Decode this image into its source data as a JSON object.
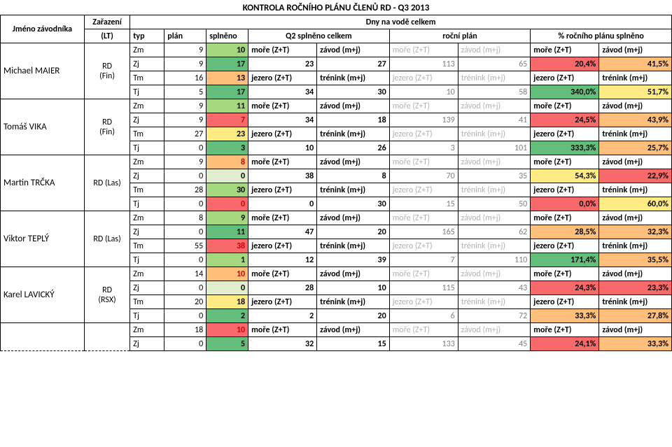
{
  "title": "KONTROLA ROČNÍHO PLÁNU ČLENŮ RD - Q3 2013",
  "headers": {
    "name": "Jméno závodníka",
    "zar_top": "Zařazení",
    "zar_bot": "(LT)",
    "dny": "Dny na vodě celkem",
    "typ": "typ",
    "plan": "plán",
    "spln": "splněno",
    "q2": "Q2 splněno celkem",
    "rocni": "roční plán",
    "pct": "% ročního plánu splněno"
  },
  "labels": {
    "more": "moře (Z+T)",
    "zavod": "závod (m+j)",
    "jezero": "jezero (Z+T)",
    "trenink": "trénink (m+j)",
    "Zm": "Zm",
    "Zj": "Zj",
    "Tm": "Tm",
    "Tj": "Tj"
  },
  "colors": {
    "green_dark": "#63be7b",
    "green_light": "#b7e1a1",
    "yellow": "#ffeb84",
    "orange": "#fdbf7a",
    "red": "#f8696b",
    "red_num": "#cc0000",
    "green_mid": "#a5d77f",
    "green_pale": "#e0eecf"
  },
  "athletes": [
    {
      "name": "Michael MAIER",
      "zar1": "RD",
      "zar2": "(Fin)",
      "rows": [
        {
          "typ": "Zm",
          "plan": "9",
          "spln": "10",
          "spln_col": "green_mid",
          "q2a": "moře (Z+T)",
          "q2b": "závod (m+j)",
          "ra": "moře (Z+T)",
          "rb": "závod (m+j)",
          "pa": "moře (Z+T)",
          "pb": "závod (m+j)",
          "faded": true
        },
        {
          "typ": "Zj",
          "plan": "9",
          "spln": "17",
          "spln_col": "green_dark",
          "q2a": "23",
          "q2b": "27",
          "ra": "113",
          "rb": "65",
          "pa": "20,4%",
          "pa_bg": "red",
          "pb": "41,5%",
          "pb_bg": "orange"
        },
        {
          "typ": "Tm",
          "plan": "16",
          "spln": "13",
          "spln_col": "orange",
          "q2a": "jezero (Z+T)",
          "q2b": "trénink (m+j)",
          "ra": "jezero (Z+T)",
          "rb": "trénink (m+j)",
          "pa": "jezero (Z+T)",
          "pb": "trénink (m+j)",
          "faded_ra": true
        },
        {
          "typ": "Tj",
          "plan": "5",
          "spln": "17",
          "spln_col": "green_dark",
          "q2a": "34",
          "q2b": "30",
          "ra": "10",
          "rb": "58",
          "pa": "340,0%",
          "pa_bg": "green_dark",
          "pb": "51,7%",
          "pb_bg": "yellow"
        }
      ]
    },
    {
      "name": "Tomáš VIKA",
      "zar1": "RD",
      "zar2": "(Fin)",
      "rows": [
        {
          "typ": "Zm",
          "plan": "9",
          "spln": "11",
          "spln_col": "green_mid",
          "q2a": "moře (Z+T)",
          "q2b": "závod (m+j)",
          "ra": "moře (Z+T)",
          "rb": "závod (m+j)",
          "pa": "moře (Z+T)",
          "pb": "závod (m+j)",
          "faded": true
        },
        {
          "typ": "Zj",
          "plan": "9",
          "spln": "7",
          "spln_col": "red",
          "spln_red": true,
          "q2a": "34",
          "q2b": "18",
          "ra": "139",
          "rb": "41",
          "pa": "24,5%",
          "pa_bg": "red",
          "pb": "43,9%",
          "pb_bg": "orange"
        },
        {
          "typ": "Tm",
          "plan": "27",
          "spln": "23",
          "spln_col": "yellow",
          "q2a": "jezero (Z+T)",
          "q2b": "trénink (m+j)",
          "ra": "jezero (Z+T)",
          "rb": "trénink (m+j)",
          "pa": "jezero (Z+T)",
          "pb": "trénink (m+j)",
          "faded_ra": true
        },
        {
          "typ": "Tj",
          "plan": "0",
          "spln": "3",
          "spln_col": "green_dark",
          "q2a": "10",
          "q2b": "26",
          "ra": "3",
          "rb": "101",
          "pa": "333,3%",
          "pa_bg": "green_dark",
          "pb": "25,7%",
          "pb_bg": "orange"
        }
      ]
    },
    {
      "name": "Martin TRČKA",
      "zar1": "RD",
      "zar2": "(Las)",
      "zar_single": true,
      "rows": [
        {
          "typ": "Zm",
          "plan": "9",
          "spln": "8",
          "spln_col": "orange",
          "spln_red": true,
          "q2a": "moře (Z+T)",
          "q2b": "závod (m+j)",
          "ra": "moře (Z+T)",
          "rb": "závod (m+j)",
          "pa": "moře (Z+T)",
          "pb": "závod (m+j)",
          "faded": true
        },
        {
          "typ": "Zj",
          "plan": "0",
          "spln": "0",
          "spln_col": "green_pale",
          "q2a": "38",
          "q2b": "8",
          "ra": "70",
          "rb": "35",
          "pa": "54,3%",
          "pa_bg": "yellow",
          "pb": "22,9%",
          "pb_bg": "red"
        },
        {
          "typ": "Tm",
          "plan": "28",
          "spln": "30",
          "spln_col": "green_mid",
          "q2a": "jezero (Z+T)",
          "q2b": "trénink (m+j)",
          "ra": "jezero (Z+T)",
          "rb": "trénink (m+j)",
          "pa": "jezero (Z+T)",
          "pb": "trénink (m+j)",
          "faded_ra": true
        },
        {
          "typ": "Tj",
          "plan": "0",
          "spln": "0",
          "spln_col": "red",
          "spln_red": true,
          "q2a": "0",
          "q2b": "30",
          "ra": "15",
          "rb": "50",
          "pa": "0,0%",
          "pa_bg": "red",
          "pb": "60,0%",
          "pb_bg": "yellow"
        }
      ]
    },
    {
      "name": "Viktor TEPLÝ",
      "zar1": "RD",
      "zar2": "(Las)",
      "zar_single": true,
      "rows": [
        {
          "typ": "Zm",
          "plan": "8",
          "spln": "9",
          "spln_col": "green_mid",
          "q2a": "moře (Z+T)",
          "q2b": "závod (m+j)",
          "ra": "moře (Z+T)",
          "rb": "závod (m+j)",
          "pa": "moře (Z+T)",
          "pb": "závod (m+j)",
          "faded": true
        },
        {
          "typ": "Zj",
          "plan": "0",
          "spln": "11",
          "spln_col": "green_dark",
          "q2a": "47",
          "q2b": "20",
          "ra": "165",
          "rb": "62",
          "pa": "28,5%",
          "pa_bg": "orange",
          "pb": "32,3%",
          "pb_bg": "orange"
        },
        {
          "typ": "Tm",
          "plan": "55",
          "spln": "38",
          "spln_col": "red",
          "spln_red": true,
          "q2a": "jezero (Z+T)",
          "q2b": "trénink (m+j)",
          "ra": "jezero (Z+T)",
          "rb": "trénink (m+j)",
          "pa": "jezero (Z+T)",
          "pb": "trénink (m+j)",
          "faded_ra": true
        },
        {
          "typ": "Tj",
          "plan": "0",
          "spln": "1",
          "spln_col": "green_mid",
          "q2a": "12",
          "q2b": "39",
          "ra": "7",
          "rb": "110",
          "pa": "171,4%",
          "pa_bg": "green_dark",
          "pb": "35,5%",
          "pb_bg": "orange"
        }
      ]
    },
    {
      "name": "Karel LAVICKÝ",
      "zar1": "RD",
      "zar2": "(RSX)",
      "rows": [
        {
          "typ": "Zm",
          "plan": "14",
          "spln": "10",
          "spln_col": "orange",
          "spln_red": true,
          "q2a": "moře (Z+T)",
          "q2b": "závod (m+j)",
          "ra": "moře (Z+T)",
          "rb": "závod (m+j)",
          "pa": "moře (Z+T)",
          "pb": "závod (m+j)",
          "faded": true
        },
        {
          "typ": "Zj",
          "plan": "0",
          "spln": "0",
          "spln_col": "green_pale",
          "q2a": "28",
          "q2b": "10",
          "ra": "115",
          "rb": "43",
          "pa": "24,3%",
          "pa_bg": "red",
          "pb": "23,3%",
          "pb_bg": "red"
        },
        {
          "typ": "Tm",
          "plan": "20",
          "spln": "18",
          "spln_col": "yellow",
          "q2a": "jezero (Z+T)",
          "q2b": "trénink (m+j)",
          "ra": "jezero (Z+T)",
          "rb": "trénink (m+j)",
          "pa": "jezero (Z+T)",
          "pb": "trénink (m+j)",
          "faded_ra": true
        },
        {
          "typ": "Tj",
          "plan": "0",
          "spln": "2",
          "spln_col": "green_dark",
          "q2a": "2",
          "q2b": "20",
          "ra": "6",
          "rb": "72",
          "pa": "33,3%",
          "pa_bg": "orange",
          "pb": "27,8%",
          "pb_bg": "orange"
        }
      ]
    },
    {
      "name": "",
      "zar1": "",
      "zar2": "",
      "partial": true,
      "rows": [
        {
          "typ": "Zm",
          "plan": "18",
          "spln": "10",
          "spln_col": "red",
          "spln_red": true,
          "q2a": "moře (Z+T)",
          "q2b": "závod (m+j)",
          "ra": "moře (Z+T)",
          "rb": "závod (m+j)",
          "pa": "moře (Z+T)",
          "pb": "závod (m+j)",
          "faded": true
        },
        {
          "typ": "Zj",
          "plan": "0",
          "spln": "5",
          "spln_col": "green_dark",
          "q2a": "32",
          "q2b": "15",
          "ra": "133",
          "rb": "45",
          "pa": "24,1%",
          "pa_bg": "red",
          "pb": "33,3%",
          "pb_bg": "orange"
        }
      ]
    }
  ]
}
